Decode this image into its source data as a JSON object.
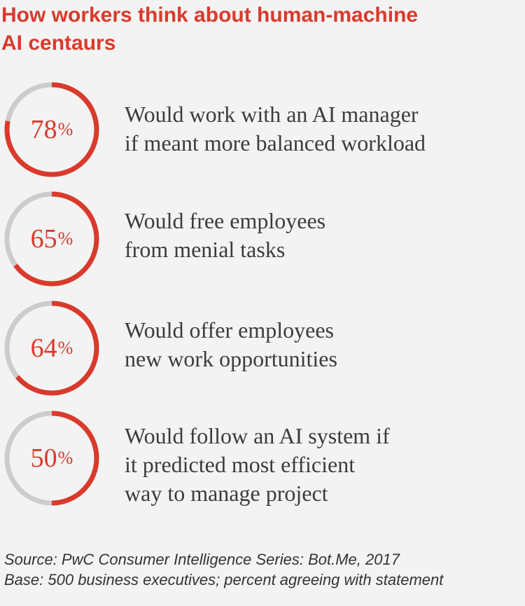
{
  "title": {
    "line1": "How workers think about human-machine",
    "line2": "AI centaurs"
  },
  "colors": {
    "accent": "#d93a2b",
    "ring_track": "#cccccc",
    "background": "#f3f3f3",
    "text": "#3c3c3c"
  },
  "chart_data": {
    "type": "donut",
    "title": "How workers think about human-machine AI centaurs",
    "items": [
      {
        "value": 78,
        "value_label": "78",
        "unit": "%",
        "lines": [
          "Would work with an AI manager",
          "if meant more balanced workload"
        ]
      },
      {
        "value": 65,
        "value_label": "65",
        "unit": "%",
        "lines": [
          "Would free employees",
          "from menial tasks"
        ]
      },
      {
        "value": 64,
        "value_label": "64",
        "unit": "%",
        "lines": [
          "Would offer employees",
          "new work opportunities"
        ]
      },
      {
        "value": 50,
        "value_label": "50",
        "unit": "%",
        "lines": [
          "Would follow an AI system if",
          "it predicted most efficient",
          "way to manage project"
        ]
      }
    ]
  },
  "source": {
    "line1": "Source: PwC Consumer Intelligence Series: Bot.Me, 2017",
    "line2": "Base: 500 business executives; percent agreeing with statement"
  }
}
